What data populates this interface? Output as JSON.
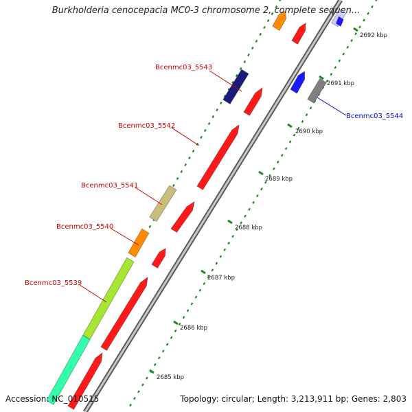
{
  "title": "Burkholderia cenocepacia MC0-3 chromosome 2, complete sequen...",
  "footer": {
    "accession": "Accession: NC_010515",
    "summary": "Topology: circular; Length: 3,213,911 bp; Genes: 2,803"
  },
  "ticks": [
    {
      "label": "2685 kbp"
    },
    {
      "label": "2686 kbp"
    },
    {
      "label": "2687 kbp"
    },
    {
      "label": "2688 kbp"
    },
    {
      "label": "2689 kbp"
    },
    {
      "label": "2690 kbp"
    },
    {
      "label": "2691 kbp"
    },
    {
      "label": "2692 kbp"
    }
  ],
  "gene_labels": [
    {
      "name": "Bcenmc03_5543",
      "color": "#cc0000"
    },
    {
      "name": "Bcenmc03_5542",
      "color": "#cc0000"
    },
    {
      "name": "Bcenmc03_5541",
      "color": "#cc0000"
    },
    {
      "name": "Bcenmc03_5540",
      "color": "#cc0000"
    },
    {
      "name": "Bcenmc03_5539",
      "color": "#cc0000"
    },
    {
      "name": "Bcenmc03_5544",
      "color": "#0000cc"
    }
  ],
  "colors": {
    "forward_cds": "#ff1a1a",
    "backbone": "#9a9a9a",
    "tick_dots": "#1f8a1f",
    "orange": "#ff8c00",
    "navy": "#1a1a7a",
    "khaki": "#c8be7a",
    "lime": "#a6e632",
    "aqua": "#33ffaa",
    "blue": "#1a1aff",
    "grey": "#808080",
    "lavender": "#ccccff"
  },
  "icons": [
    "forward-arrow-icon",
    "reverse-arrow-icon"
  ]
}
